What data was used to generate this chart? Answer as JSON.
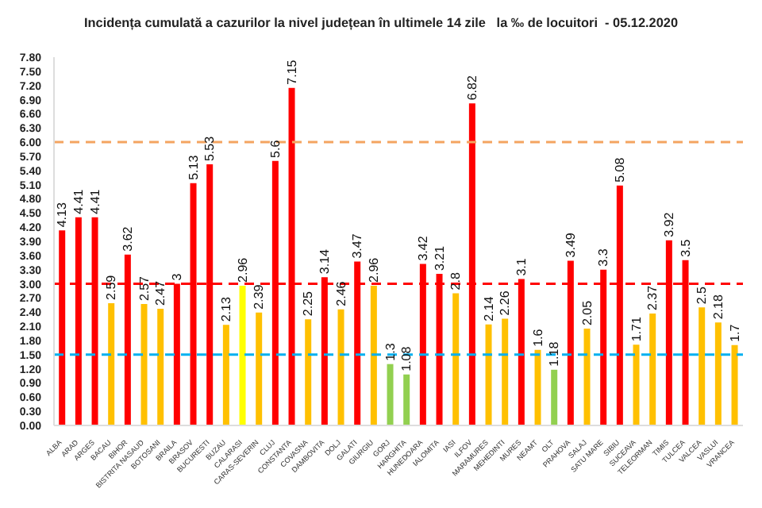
{
  "chart_data": {
    "type": "bar",
    "title": "Incidența cumulată a cazurilor la nivel județean în ultimele 14 zile   la ‰ de locuitori  - 05.12.2020",
    "categories": [
      "ALBA",
      "ARAD",
      "ARGES",
      "BACAU",
      "BIHOR",
      "BISTRITA NASAUD",
      "BOTOSANI",
      "BRAILA",
      "BRASOV",
      "BUCURESTI",
      "BUZAU",
      "CALARASI",
      "CARAS-SEVERIN",
      "CLUJ",
      "CONSTANTA",
      "COVASNA",
      "DAMBOVITA",
      "DOLJ",
      "GALATI",
      "GIURGIU",
      "GORJ",
      "HARGHITA",
      "HUNEDOARA",
      "IALOMITA",
      "IASI",
      "ILFOV",
      "MARAMURES",
      "MEHEDINTI",
      "MURES",
      "NEAMT",
      "OLT",
      "PRAHOVA",
      "SALAJ",
      "SATU MARE",
      "SIBIU",
      "SUCEAVA",
      "TELEORMAN",
      "TIMIS",
      "TULCEA",
      "VALCEA",
      "VASLUI",
      "VRANCEA"
    ],
    "values": [
      4.13,
      4.41,
      4.41,
      2.59,
      3.62,
      2.57,
      2.47,
      3,
      5.13,
      5.53,
      2.13,
      2.96,
      2.39,
      5.6,
      7.15,
      2.25,
      3.14,
      2.46,
      3.47,
      2.96,
      1.3,
      1.08,
      3.42,
      3.21,
      2.8,
      6.82,
      2.14,
      2.26,
      3.1,
      1.6,
      1.18,
      3.49,
      2.05,
      3.3,
      5.08,
      1.71,
      2.37,
      3.92,
      3.5,
      2.5,
      2.18,
      1.7
    ],
    "colors": [
      "#ff0000",
      "#ff0000",
      "#ff0000",
      "#ffc000",
      "#ff0000",
      "#ffc000",
      "#ffc000",
      "#ff0000",
      "#ff0000",
      "#ff0000",
      "#ffc000",
      "#ffff00",
      "#ffc000",
      "#ff0000",
      "#ff0000",
      "#ffc000",
      "#ff0000",
      "#ffc000",
      "#ff0000",
      "#ffc000",
      "#92d050",
      "#92d050",
      "#ff0000",
      "#ff0000",
      "#ffc000",
      "#ff0000",
      "#ffc000",
      "#ffc000",
      "#ff0000",
      "#ffc000",
      "#92d050",
      "#ff0000",
      "#ffc000",
      "#ff0000",
      "#ff0000",
      "#ffc000",
      "#ffc000",
      "#ff0000",
      "#ff0000",
      "#ffc000",
      "#ffc000",
      "#ffc000"
    ],
    "ylim": [
      0,
      7.8
    ],
    "yticks": [
      {
        "value": 0,
        "label": "0.00"
      },
      {
        "value": 0.3,
        "label": "0.30"
      },
      {
        "value": 0.6,
        "label": "0.60"
      },
      {
        "value": 0.9,
        "label": "0.90"
      },
      {
        "value": 1.2,
        "label": "1.20"
      },
      {
        "value": 1.5,
        "label": "1.50"
      },
      {
        "value": 1.8,
        "label": "1.80"
      },
      {
        "value": 2.1,
        "label": "2.10"
      },
      {
        "value": 2.4,
        "label": "2.40"
      },
      {
        "value": 2.7,
        "label": "2.70"
      },
      {
        "value": 3,
        "label": "3.00"
      },
      {
        "value": 3.3,
        "label": "3.30"
      },
      {
        "value": 3.6,
        "label": "3.60"
      },
      {
        "value": 3.9,
        "label": "3.90"
      },
      {
        "value": 4.2,
        "label": "4.20"
      },
      {
        "value": 4.5,
        "label": "4.50"
      },
      {
        "value": 4.8,
        "label": "4.80"
      },
      {
        "value": 5.1,
        "label": "5.10"
      },
      {
        "value": 5.4,
        "label": "5.40"
      },
      {
        "value": 5.7,
        "label": "5.70"
      },
      {
        "value": 6,
        "label": "6.00"
      },
      {
        "value": 6.3,
        "label": "6.30"
      },
      {
        "value": 6.6,
        "label": "6.60"
      },
      {
        "value": 6.9,
        "label": "6.90"
      },
      {
        "value": 7.2,
        "label": "7.20"
      },
      {
        "value": 7.5,
        "label": "7.50"
      },
      {
        "value": 7.8,
        "label": "7.80"
      }
    ],
    "ref_lines": [
      {
        "axis": "y",
        "value": 1.5,
        "color": "#00b0f0",
        "line_style": "dashed"
      },
      {
        "axis": "y",
        "value": 3,
        "color": "#ff0000",
        "line_style": "dashed"
      },
      {
        "axis": "y",
        "value": 6,
        "color": "#f4a460",
        "line_style": "dashed"
      }
    ],
    "data_labels": true,
    "grid": false,
    "legend": false
  }
}
